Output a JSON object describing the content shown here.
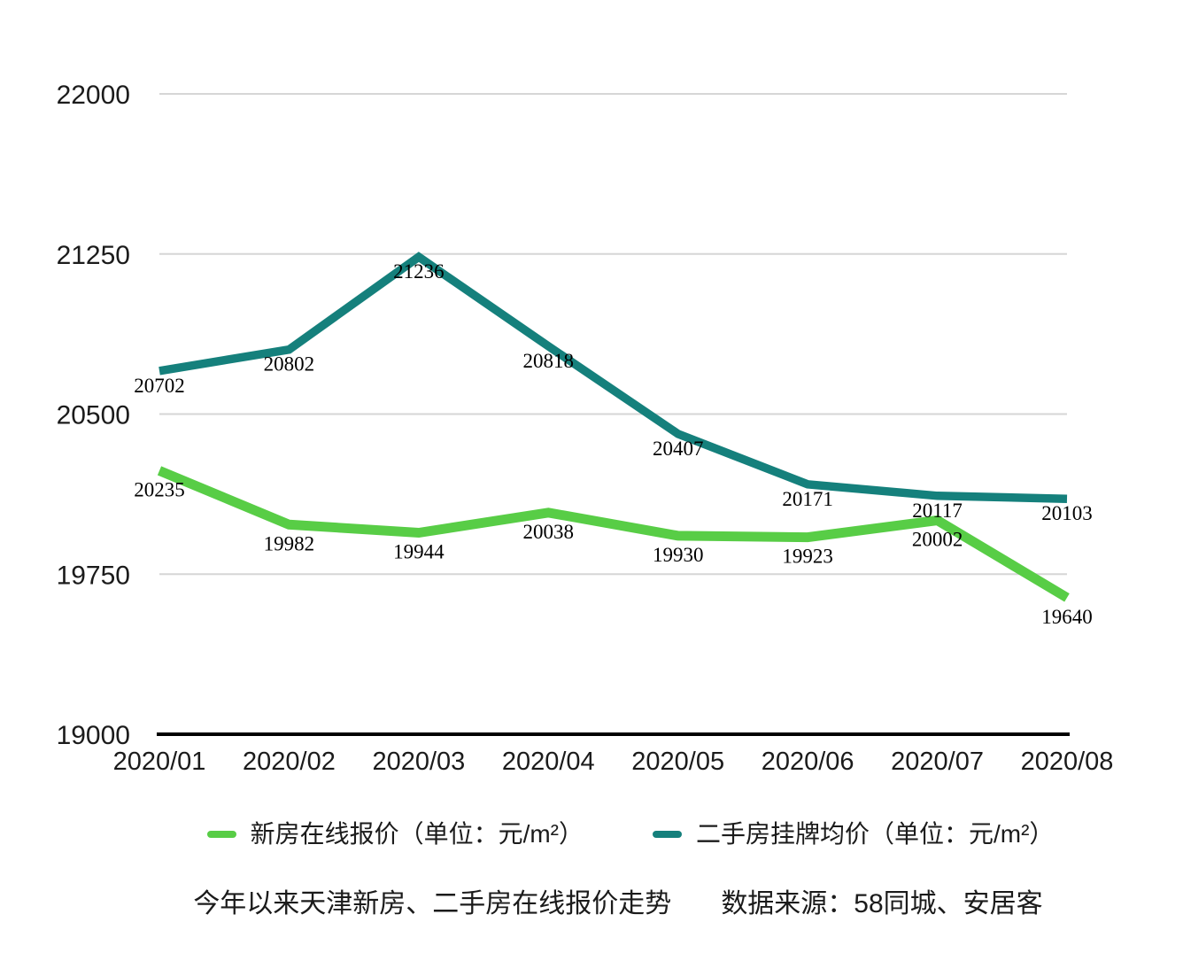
{
  "chart_data": {
    "type": "line",
    "x": [
      "2020/01",
      "2020/02",
      "2020/03",
      "2020/04",
      "2020/05",
      "2020/06",
      "2020/07",
      "2020/08"
    ],
    "series": [
      {
        "name": "新房在线报价（单位：元/m²）",
        "color": "#58CD46",
        "values": [
          20235,
          19982,
          19944,
          20038,
          19930,
          19923,
          20002,
          19640
        ]
      },
      {
        "name": "二手房挂牌均价（单位：元/m²）",
        "color": "#15807C",
        "values": [
          20702,
          20802,
          21236,
          20818,
          20407,
          20171,
          20117,
          20103
        ]
      }
    ],
    "ylim": [
      19000,
      22000
    ],
    "yticks": [
      19000,
      19750,
      20500,
      21250,
      22000
    ],
    "grid": "horizontal-gray-lines, black baseline axis, no vertical axis line",
    "data_labels": "every point labeled with its value below the line",
    "legend_position": "bottom",
    "title": "今年以来天津新房、二手房在线报价走势",
    "source": "数据来源：58同城、安居客"
  },
  "legend": {
    "items": [
      {
        "label": "新房在线报价（单位：元/m²）"
      },
      {
        "label": "二手房挂牌均价（单位：元/m²）"
      }
    ]
  },
  "footer": {
    "title": "今年以来天津新房、二手房在线报价走势",
    "source": "数据来源：58同城、安居客"
  }
}
